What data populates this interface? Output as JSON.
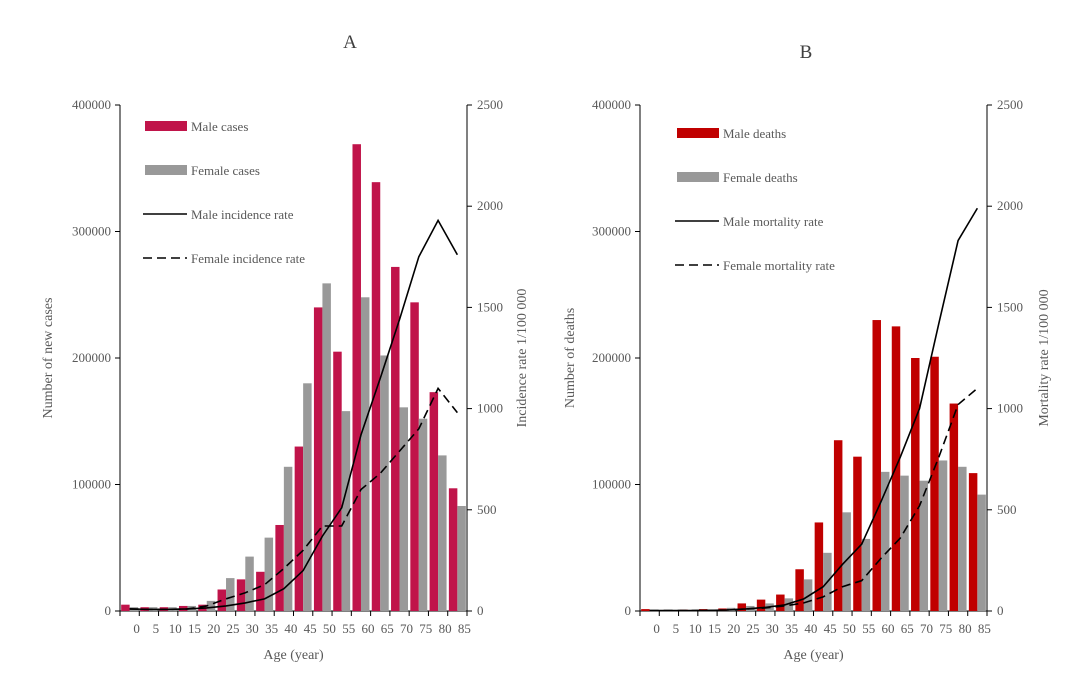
{
  "chart_data": [
    {
      "type": "bar",
      "title": "A",
      "xlabel": "Age (year)",
      "ylabel": "Number of new cases",
      "y2label": "Incidence rate 1/100 000",
      "ylim": [
        0,
        400000
      ],
      "y2lim": [
        0,
        2500
      ],
      "yticks": [
        "0",
        "100000",
        "200000",
        "300000",
        "400000"
      ],
      "y2ticks": [
        "0",
        "500",
        "1000",
        "1500",
        "2000",
        "2500"
      ],
      "categories": [
        "0",
        "5",
        "10",
        "15",
        "20",
        "25",
        "30",
        "35",
        "40",
        "45",
        "50",
        "55",
        "60",
        "65",
        "70",
        "75",
        "80",
        "85"
      ],
      "series": [
        {
          "name": "Male cases",
          "kind": "bar",
          "axis": "left",
          "color": "#c0144a",
          "values": [
            5000,
            3000,
            3000,
            4000,
            5000,
            17000,
            25000,
            31000,
            68000,
            130000,
            240000,
            205000,
            369000,
            339000,
            272000,
            244000,
            173000,
            97000
          ]
        },
        {
          "name": "Female cases",
          "kind": "bar",
          "axis": "left",
          "color": "#999999",
          "values": [
            3000,
            3000,
            3000,
            4000,
            8000,
            26000,
            43000,
            58000,
            114000,
            180000,
            259000,
            158000,
            248000,
            202000,
            161000,
            152000,
            123000,
            83000
          ]
        },
        {
          "name": "Male incidence rate",
          "kind": "line",
          "dash": "solid",
          "axis": "right",
          "color": "#000000",
          "values": [
            10,
            8,
            8,
            10,
            15,
            25,
            40,
            60,
            110,
            200,
            370,
            510,
            870,
            1150,
            1440,
            1750,
            1930,
            1760
          ]
        },
        {
          "name": "Female incidence rate",
          "kind": "line",
          "dash": "dashed",
          "axis": "right",
          "color": "#000000",
          "values": [
            10,
            8,
            8,
            10,
            25,
            60,
            90,
            130,
            210,
            300,
            420,
            420,
            600,
            680,
            790,
            900,
            1100,
            980
          ]
        }
      ],
      "legend_position": "top-left"
    },
    {
      "type": "bar",
      "title": "B",
      "xlabel": "Age (year)",
      "ylabel": "Number of deaths",
      "y2label": "Mortality rate 1/100 000",
      "ylim": [
        0,
        400000
      ],
      "y2lim": [
        0,
        2500
      ],
      "yticks": [
        "0",
        "100000",
        "200000",
        "300000",
        "400000"
      ],
      "y2ticks": [
        "0",
        "500",
        "1000",
        "1500",
        "2000",
        "2500"
      ],
      "categories": [
        "0",
        "5",
        "10",
        "15",
        "20",
        "25",
        "30",
        "35",
        "40",
        "45",
        "50",
        "55",
        "60",
        "65",
        "70",
        "75",
        "80",
        "85"
      ],
      "series": [
        {
          "name": "Male deaths",
          "kind": "bar",
          "axis": "left",
          "color": "#c00000",
          "values": [
            1500,
            800,
            1000,
            1500,
            2000,
            6000,
            9000,
            13000,
            33000,
            70000,
            135000,
            122000,
            230000,
            225000,
            200000,
            201000,
            164000,
            109000
          ]
        },
        {
          "name": "Female deaths",
          "kind": "bar",
          "axis": "left",
          "color": "#999999",
          "values": [
            800,
            700,
            700,
            900,
            2500,
            4000,
            6000,
            10000,
            25000,
            46000,
            78000,
            57000,
            110000,
            107000,
            103000,
            119000,
            114000,
            92000
          ]
        },
        {
          "name": "Male mortality rate",
          "kind": "line",
          "dash": "solid",
          "axis": "right",
          "color": "#000000",
          "values": [
            2,
            2,
            2,
            3,
            5,
            10,
            18,
            30,
            60,
            120,
            230,
            330,
            540,
            760,
            1000,
            1420,
            1830,
            1990
          ]
        },
        {
          "name": "Female mortality rate",
          "kind": "line",
          "dash": "dashed",
          "axis": "right",
          "color": "#000000",
          "values": [
            2,
            2,
            2,
            3,
            5,
            10,
            15,
            25,
            40,
            70,
            120,
            150,
            260,
            360,
            520,
            760,
            1020,
            1100
          ]
        }
      ],
      "legend_position": "top-left"
    }
  ]
}
